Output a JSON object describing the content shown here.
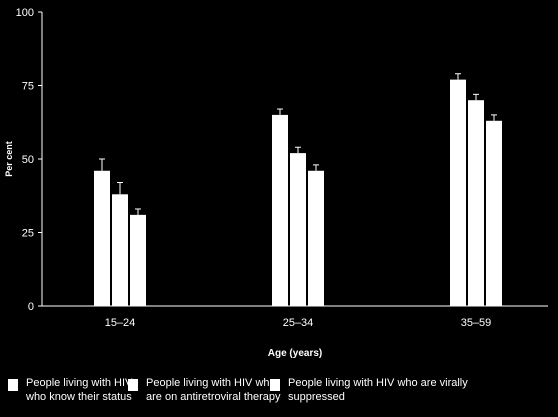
{
  "chart_data": {
    "type": "bar",
    "categories": [
      "15–24",
      "25–34",
      "35–59"
    ],
    "series": [
      {
        "name": "People living with HIV who know their status",
        "values": [
          46,
          65,
          77
        ],
        "error_upper": [
          50,
          67,
          79
        ]
      },
      {
        "name": "People living with HIV who are on antiretroviral therapy",
        "values": [
          38,
          52,
          70
        ],
        "error_upper": [
          42,
          54,
          72
        ]
      },
      {
        "name": "People living with HIV who are virally suppressed",
        "values": [
          31,
          46,
          63
        ],
        "error_upper": [
          33,
          48,
          65
        ]
      }
    ],
    "xlabel": "Age (years)",
    "ylabel": "Per cent",
    "ylim": [
      0,
      100
    ],
    "yticks": [
      "0",
      "25",
      "50",
      "75",
      "100"
    ],
    "grid": false,
    "legend_position": "bottom",
    "colors": {
      "background": "#000000",
      "bars": "#ffffff",
      "axis": "#ffffff"
    }
  },
  "legend": {
    "items": [
      {
        "line1": "People living with HIV",
        "line2": "who know their status"
      },
      {
        "line1": "People living with HIV who",
        "line2": "are on antiretroviral therapy"
      },
      {
        "line1": "People living with HIV who are virally",
        "line2": "suppressed"
      }
    ]
  }
}
